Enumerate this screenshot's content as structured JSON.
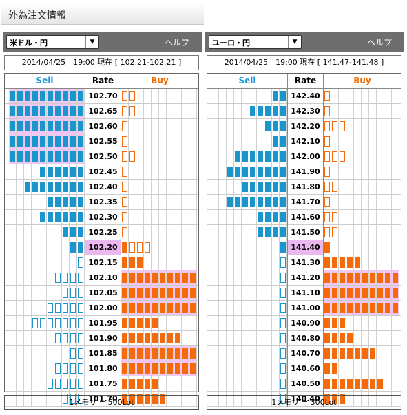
{
  "page_title": "外為注文情報",
  "colors": {
    "sell": "#1a96cd",
    "buy": "#f56a0a",
    "current_rate_bg": "#eab7ee",
    "highlight_bg": "#f0c8f3",
    "header_bg": "#6e6e6e"
  },
  "panels": [
    {
      "pair": "米ドル・円",
      "help_label": "ヘルプ",
      "info": "2014/04/25　19:00 現在 [ 102.21-102.21 ]",
      "header": {
        "sell": "Sell",
        "rate": "Rate",
        "buy": "Buy"
      },
      "footer": "1メモリ = 500Lot",
      "rows": [
        {
          "rate": "102.70",
          "sell_filled": 10,
          "sell_outline": 0,
          "buy_filled": 0,
          "buy_outline": 2,
          "sell_highlight": true,
          "buy_highlight": false,
          "current": false
        },
        {
          "rate": "102.65",
          "sell_filled": 10,
          "sell_outline": 0,
          "buy_filled": 0,
          "buy_outline": 2,
          "sell_highlight": true,
          "buy_highlight": false,
          "current": false
        },
        {
          "rate": "102.60",
          "sell_filled": 10,
          "sell_outline": 0,
          "buy_filled": 0,
          "buy_outline": 1,
          "sell_highlight": true,
          "buy_highlight": false,
          "current": false
        },
        {
          "rate": "102.55",
          "sell_filled": 10,
          "sell_outline": 0,
          "buy_filled": 0,
          "buy_outline": 1,
          "sell_highlight": true,
          "buy_highlight": false,
          "current": false
        },
        {
          "rate": "102.50",
          "sell_filled": 10,
          "sell_outline": 0,
          "buy_filled": 0,
          "buy_outline": 2,
          "sell_highlight": true,
          "buy_highlight": false,
          "current": false
        },
        {
          "rate": "102.45",
          "sell_filled": 6,
          "sell_outline": 0,
          "buy_filled": 0,
          "buy_outline": 1,
          "sell_highlight": false,
          "buy_highlight": false,
          "current": false
        },
        {
          "rate": "102.40",
          "sell_filled": 8,
          "sell_outline": 0,
          "buy_filled": 0,
          "buy_outline": 1,
          "sell_highlight": false,
          "buy_highlight": false,
          "current": false
        },
        {
          "rate": "102.35",
          "sell_filled": 5,
          "sell_outline": 0,
          "buy_filled": 0,
          "buy_outline": 1,
          "sell_highlight": false,
          "buy_highlight": false,
          "current": false
        },
        {
          "rate": "102.30",
          "sell_filled": 6,
          "sell_outline": 0,
          "buy_filled": 0,
          "buy_outline": 1,
          "sell_highlight": false,
          "buy_highlight": false,
          "current": false
        },
        {
          "rate": "102.25",
          "sell_filled": 3,
          "sell_outline": 0,
          "buy_filled": 0,
          "buy_outline": 1,
          "sell_highlight": false,
          "buy_highlight": false,
          "current": false
        },
        {
          "rate": "102.20",
          "sell_filled": 2,
          "sell_outline": 0,
          "buy_filled": 1,
          "buy_outline": 3,
          "sell_highlight": false,
          "buy_highlight": false,
          "current": true
        },
        {
          "rate": "102.15",
          "sell_filled": 0,
          "sell_outline": 1,
          "buy_filled": 3,
          "buy_outline": 0,
          "sell_highlight": false,
          "buy_highlight": false,
          "current": false
        },
        {
          "rate": "102.10",
          "sell_filled": 0,
          "sell_outline": 4,
          "buy_filled": 10,
          "buy_outline": 0,
          "sell_highlight": false,
          "buy_highlight": true,
          "current": false
        },
        {
          "rate": "102.05",
          "sell_filled": 0,
          "sell_outline": 3,
          "buy_filled": 10,
          "buy_outline": 0,
          "sell_highlight": false,
          "buy_highlight": true,
          "current": false
        },
        {
          "rate": "102.00",
          "sell_filled": 0,
          "sell_outline": 5,
          "buy_filled": 10,
          "buy_outline": 0,
          "sell_highlight": false,
          "buy_highlight": true,
          "current": false
        },
        {
          "rate": "101.95",
          "sell_filled": 0,
          "sell_outline": 7,
          "buy_filled": 5,
          "buy_outline": 0,
          "sell_highlight": false,
          "buy_highlight": false,
          "current": false
        },
        {
          "rate": "101.90",
          "sell_filled": 0,
          "sell_outline": 4,
          "buy_filled": 8,
          "buy_outline": 0,
          "sell_highlight": false,
          "buy_highlight": false,
          "current": false
        },
        {
          "rate": "101.85",
          "sell_filled": 0,
          "sell_outline": 2,
          "buy_filled": 10,
          "buy_outline": 0,
          "sell_highlight": false,
          "buy_highlight": true,
          "current": false
        },
        {
          "rate": "101.80",
          "sell_filled": 0,
          "sell_outline": 4,
          "buy_filled": 10,
          "buy_outline": 0,
          "sell_highlight": false,
          "buy_highlight": true,
          "current": false
        },
        {
          "rate": "101.75",
          "sell_filled": 0,
          "sell_outline": 5,
          "buy_filled": 5,
          "buy_outline": 0,
          "sell_highlight": false,
          "buy_highlight": false,
          "current": false
        },
        {
          "rate": "101.70",
          "sell_filled": 0,
          "sell_outline": 3,
          "buy_filled": 6,
          "buy_outline": 0,
          "sell_highlight": false,
          "buy_highlight": false,
          "current": false
        }
      ]
    },
    {
      "pair": "ユーロ・円",
      "help_label": "ヘルプ",
      "info": "2014/04/25　19:00 現在 [ 141.47-141.48 ]",
      "header": {
        "sell": "Sell",
        "rate": "Rate",
        "buy": "Buy"
      },
      "footer": "1メモリ = 300Lot",
      "rows": [
        {
          "rate": "142.40",
          "sell_filled": 2,
          "sell_outline": 0,
          "buy_filled": 0,
          "buy_outline": 1,
          "sell_highlight": false,
          "buy_highlight": false,
          "current": false
        },
        {
          "rate": "142.30",
          "sell_filled": 5,
          "sell_outline": 0,
          "buy_filled": 0,
          "buy_outline": 1,
          "sell_highlight": false,
          "buy_highlight": false,
          "current": false
        },
        {
          "rate": "142.20",
          "sell_filled": 3,
          "sell_outline": 0,
          "buy_filled": 0,
          "buy_outline": 3,
          "sell_highlight": false,
          "buy_highlight": false,
          "current": false
        },
        {
          "rate": "142.10",
          "sell_filled": 2,
          "sell_outline": 0,
          "buy_filled": 0,
          "buy_outline": 1,
          "sell_highlight": false,
          "buy_highlight": false,
          "current": false
        },
        {
          "rate": "142.00",
          "sell_filled": 7,
          "sell_outline": 0,
          "buy_filled": 0,
          "buy_outline": 3,
          "sell_highlight": false,
          "buy_highlight": false,
          "current": false
        },
        {
          "rate": "141.90",
          "sell_filled": 8,
          "sell_outline": 0,
          "buy_filled": 0,
          "buy_outline": 1,
          "sell_highlight": false,
          "buy_highlight": false,
          "current": false
        },
        {
          "rate": "141.80",
          "sell_filled": 6,
          "sell_outline": 0,
          "buy_filled": 0,
          "buy_outline": 2,
          "sell_highlight": false,
          "buy_highlight": false,
          "current": false
        },
        {
          "rate": "141.70",
          "sell_filled": 8,
          "sell_outline": 0,
          "buy_filled": 0,
          "buy_outline": 1,
          "sell_highlight": false,
          "buy_highlight": false,
          "current": false
        },
        {
          "rate": "141.60",
          "sell_filled": 4,
          "sell_outline": 0,
          "buy_filled": 0,
          "buy_outline": 2,
          "sell_highlight": false,
          "buy_highlight": false,
          "current": false
        },
        {
          "rate": "141.50",
          "sell_filled": 4,
          "sell_outline": 0,
          "buy_filled": 0,
          "buy_outline": 2,
          "sell_highlight": false,
          "buy_highlight": false,
          "current": false
        },
        {
          "rate": "141.40",
          "sell_filled": 1,
          "sell_outline": 0,
          "buy_filled": 1,
          "buy_outline": 0,
          "sell_highlight": false,
          "buy_highlight": false,
          "current": true
        },
        {
          "rate": "141.30",
          "sell_filled": 0,
          "sell_outline": 1,
          "buy_filled": 5,
          "buy_outline": 0,
          "sell_highlight": false,
          "buy_highlight": false,
          "current": false
        },
        {
          "rate": "141.20",
          "sell_filled": 0,
          "sell_outline": 1,
          "buy_filled": 10,
          "buy_outline": 0,
          "sell_highlight": false,
          "buy_highlight": true,
          "current": false
        },
        {
          "rate": "141.10",
          "sell_filled": 0,
          "sell_outline": 1,
          "buy_filled": 10,
          "buy_outline": 0,
          "sell_highlight": false,
          "buy_highlight": true,
          "current": false
        },
        {
          "rate": "141.00",
          "sell_filled": 0,
          "sell_outline": 1,
          "buy_filled": 10,
          "buy_outline": 0,
          "sell_highlight": false,
          "buy_highlight": true,
          "current": false
        },
        {
          "rate": "140.90",
          "sell_filled": 0,
          "sell_outline": 1,
          "buy_filled": 3,
          "buy_outline": 0,
          "sell_highlight": false,
          "buy_highlight": false,
          "current": false
        },
        {
          "rate": "140.80",
          "sell_filled": 0,
          "sell_outline": 1,
          "buy_filled": 4,
          "buy_outline": 0,
          "sell_highlight": false,
          "buy_highlight": false,
          "current": false
        },
        {
          "rate": "140.70",
          "sell_filled": 0,
          "sell_outline": 1,
          "buy_filled": 7,
          "buy_outline": 0,
          "sell_highlight": false,
          "buy_highlight": false,
          "current": false
        },
        {
          "rate": "140.60",
          "sell_filled": 0,
          "sell_outline": 1,
          "buy_filled": 2,
          "buy_outline": 0,
          "sell_highlight": false,
          "buy_highlight": false,
          "current": false
        },
        {
          "rate": "140.50",
          "sell_filled": 0,
          "sell_outline": 1,
          "buy_filled": 8,
          "buy_outline": 0,
          "sell_highlight": false,
          "buy_highlight": false,
          "current": false
        },
        {
          "rate": "140.40",
          "sell_filled": 0,
          "sell_outline": 1,
          "buy_filled": 3,
          "buy_outline": 0,
          "sell_highlight": false,
          "buy_highlight": false,
          "current": false
        }
      ]
    }
  ]
}
